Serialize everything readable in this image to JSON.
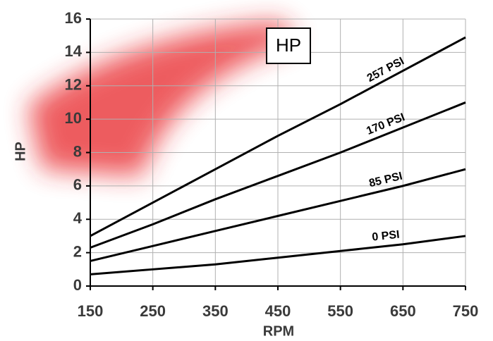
{
  "chart_data": {
    "type": "line",
    "title": "HP",
    "x_label": "RPM",
    "y_label": "HP",
    "x": [
      150,
      250,
      350,
      450,
      550,
      650,
      750
    ],
    "series": [
      {
        "name": "257 PSI",
        "color": "#000000",
        "values": [
          3.0,
          5.0,
          7.0,
          9.0,
          10.9,
          12.9,
          14.9
        ]
      },
      {
        "name": "170 PSI",
        "color": "#000000",
        "values": [
          2.3,
          3.7,
          5.2,
          6.6,
          8.0,
          9.5,
          11.0
        ]
      },
      {
        "name": "85 PSI",
        "color": "#000000",
        "values": [
          1.5,
          2.4,
          3.3,
          4.2,
          5.1,
          6.0,
          7.0
        ]
      },
      {
        "name": "0 PSI",
        "color": "#000000",
        "values": [
          0.7,
          1.0,
          1.3,
          1.7,
          2.1,
          2.5,
          3.0
        ]
      }
    ],
    "xlim": [
      150,
      750
    ],
    "xticks": [
      150,
      250,
      350,
      450,
      550,
      650,
      750
    ],
    "ylim": [
      0,
      16
    ],
    "yticks": [
      0,
      2,
      4,
      6,
      8,
      10,
      12,
      14,
      16
    ],
    "grid": true
  }
}
